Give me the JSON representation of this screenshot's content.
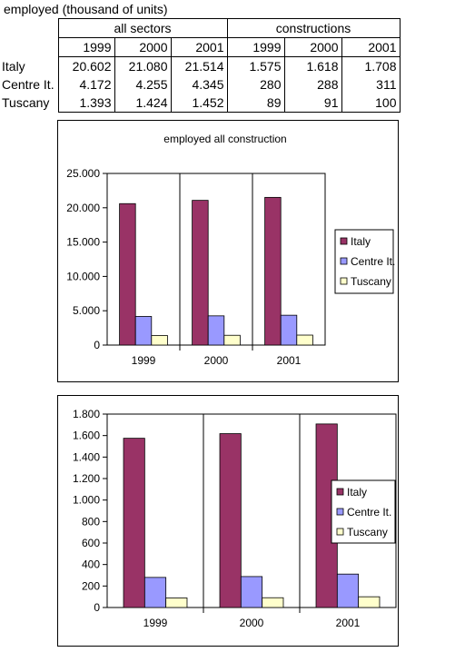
{
  "table": {
    "caption": "employed  (thousand of units)",
    "group_all": "all sectors",
    "group_con": "constructions",
    "years": [
      "1999",
      "2000",
      "2001"
    ],
    "rows": [
      {
        "label": "Italy",
        "all": [
          "20.602",
          "21.080",
          "21.514"
        ],
        "con": [
          "1.575",
          "1.618",
          "1.708"
        ]
      },
      {
        "label": "Centre It.",
        "all": [
          "4.172",
          "4.255",
          "4.345"
        ],
        "con": [
          "280",
          "288",
          "311"
        ]
      },
      {
        "label": "Tuscany",
        "all": [
          "1.393",
          "1.424",
          "1.452"
        ],
        "con": [
          "89",
          "91",
          "100"
        ]
      }
    ]
  },
  "colors": {
    "Italy": "#993366",
    "Centre It.": "#9999ff",
    "Tuscany": "#ffffcc"
  },
  "chart_data": [
    {
      "type": "bar",
      "title": "employed all construction",
      "categories": [
        "1999",
        "2000",
        "2001"
      ],
      "series": [
        {
          "name": "Italy",
          "values": [
            20602,
            21080,
            21514
          ]
        },
        {
          "name": "Centre It.",
          "values": [
            4172,
            4255,
            4345
          ]
        },
        {
          "name": "Tuscany",
          "values": [
            1393,
            1424,
            1452
          ]
        }
      ],
      "ylim": [
        0,
        25000
      ],
      "yticks": [
        0,
        5000,
        10000,
        15000,
        20000,
        25000
      ],
      "ytick_labels": [
        "0",
        "5.000",
        "10.000",
        "15.000",
        "20.000",
        "25.000"
      ],
      "legend": "right",
      "grid": false
    },
    {
      "type": "bar",
      "title": "",
      "categories": [
        "1999",
        "2000",
        "2001"
      ],
      "series": [
        {
          "name": "Italy",
          "values": [
            1575,
            1618,
            1708
          ]
        },
        {
          "name": "Centre It.",
          "values": [
            280,
            288,
            311
          ]
        },
        {
          "name": "Tuscany",
          "values": [
            89,
            91,
            100
          ]
        }
      ],
      "ylim": [
        0,
        1800
      ],
      "yticks": [
        0,
        200,
        400,
        600,
        800,
        1000,
        1200,
        1400,
        1600,
        1800
      ],
      "ytick_labels": [
        "0",
        "200",
        "400",
        "600",
        "800",
        "1.000",
        "1.200",
        "1.400",
        "1.600",
        "1.800"
      ],
      "legend": "right",
      "grid": false
    }
  ]
}
